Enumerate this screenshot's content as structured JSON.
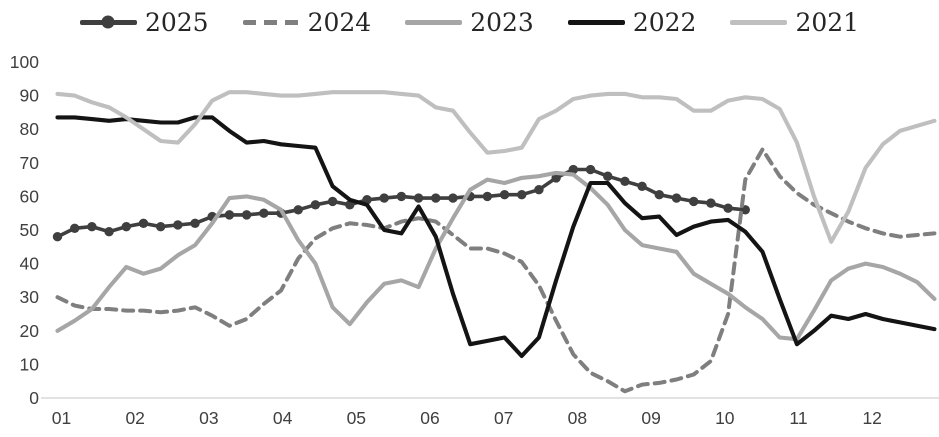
{
  "chart_data": {
    "type": "line",
    "title": "",
    "xlabel": "",
    "ylabel": "",
    "x_axis": {
      "unit": "month",
      "tick_labels": [
        "01",
        "02",
        "03",
        "04",
        "05",
        "06",
        "07",
        "08",
        "09",
        "10",
        "11",
        "12"
      ],
      "points_per_month": 4.3,
      "x_start_month": 1,
      "x_step_months": 0.2333
    },
    "y_axis": {
      "ylim": [
        0,
        100
      ],
      "ticks": [
        0,
        10,
        20,
        30,
        40,
        50,
        60,
        70,
        80,
        90,
        100
      ],
      "gridlines": false
    },
    "legend_position": "top",
    "series": [
      {
        "name": "2025",
        "color": "#3f3f3f",
        "style": "solid",
        "marker": true,
        "note": "series ends mid-October",
        "values": [
          48,
          50.5,
          51,
          49.5,
          51,
          52,
          51,
          51.5,
          52,
          54,
          54.5,
          54.5,
          55,
          55,
          56,
          57.5,
          58.5,
          57.5,
          59,
          59.5,
          60,
          59.5,
          59.5,
          59.5,
          60,
          60,
          60.5,
          60.5,
          62,
          65.5,
          68,
          68,
          66,
          64.5,
          63,
          60.5,
          59.5,
          58.5,
          58,
          56.5,
          56
        ]
      },
      {
        "name": "2024",
        "color": "#7f7f7f",
        "style": "dashed",
        "marker": false,
        "values": [
          30,
          27.5,
          26.5,
          26.5,
          26,
          26,
          25.5,
          26,
          27,
          24.5,
          21.5,
          23.5,
          28,
          32,
          41.5,
          47.5,
          50.5,
          52,
          51.5,
          50.5,
          52.5,
          53.5,
          52.5,
          48.5,
          44.5,
          44.5,
          43,
          40.5,
          33.5,
          23,
          13,
          7.5,
          5,
          2,
          4,
          4.5,
          5.5,
          7,
          11,
          25,
          65,
          74,
          66,
          61,
          57.5,
          55,
          52.5,
          50.5,
          49,
          48,
          48.5,
          49
        ]
      },
      {
        "name": "2023",
        "color": "#a6a6a6",
        "style": "solid",
        "marker": false,
        "values": [
          20,
          23,
          26.5,
          33,
          39,
          37,
          38.5,
          42.5,
          45.5,
          52,
          59.5,
          60,
          59,
          56,
          47,
          40,
          27,
          22,
          28.5,
          34,
          35,
          33,
          44.5,
          53.5,
          62,
          65,
          64,
          65.5,
          66,
          67,
          66.5,
          62.5,
          57.5,
          50,
          45.5,
          44.5,
          43.5,
          37,
          34,
          31,
          27,
          23.5,
          18,
          17.5,
          26,
          35,
          38.5,
          40,
          39,
          37,
          34.5,
          29.5
        ]
      },
      {
        "name": "2022",
        "color": "#141414",
        "style": "solid",
        "marker": false,
        "values": [
          83.5,
          83.5,
          83,
          82.5,
          83,
          82.5,
          82,
          82,
          83.5,
          83.5,
          79.5,
          76,
          76.5,
          75.5,
          75,
          74.5,
          63,
          59,
          57.5,
          50,
          49,
          57,
          48,
          31,
          16,
          17,
          18,
          12.5,
          18,
          35,
          51,
          64,
          64,
          58,
          53.5,
          54,
          48.5,
          51,
          52.5,
          53,
          49.5,
          43.5,
          29.5,
          16,
          20,
          24.5,
          23.5,
          25,
          23.5,
          22.5,
          21.5,
          20.5
        ]
      },
      {
        "name": "2021",
        "color": "#bfbfbf",
        "style": "solid",
        "marker": false,
        "values": [
          90.5,
          90,
          88,
          86.5,
          83.5,
          80,
          76.5,
          76,
          81.5,
          88.5,
          91,
          91,
          90.5,
          90,
          90,
          90.5,
          91,
          91,
          91,
          91,
          90.5,
          90,
          86.5,
          85.5,
          79,
          73,
          73.5,
          74.5,
          83,
          85.5,
          89,
          90,
          90.5,
          90.5,
          89.5,
          89.5,
          89,
          85.5,
          85.5,
          88.5,
          89.5,
          89,
          86,
          76,
          60,
          46.5,
          55.5,
          68.5,
          75.5,
          79.5,
          81,
          82.5
        ]
      }
    ],
    "colors": {
      "axis_label_text": "#404040",
      "axis_line": "#d9d9d9",
      "legend_text": "#262626",
      "background": "#ffffff"
    }
  }
}
